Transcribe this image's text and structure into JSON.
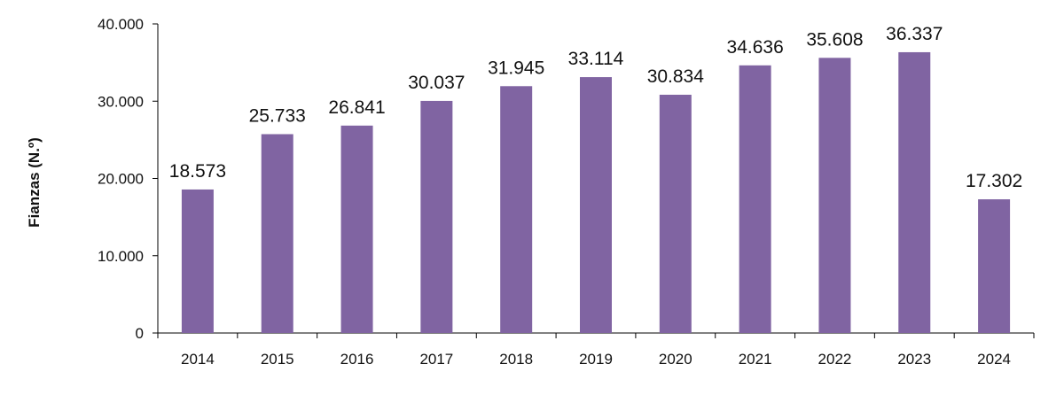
{
  "chart_data": {
    "type": "bar",
    "title": "",
    "xlabel": "",
    "ylabel": "Fianzas (N.º)",
    "ylim": [
      0,
      40000
    ],
    "yticks": [
      0,
      10000,
      20000,
      30000,
      40000
    ],
    "ytick_labels": [
      "0",
      "10.000",
      "20.000",
      "30.000",
      "40.000"
    ],
    "categories": [
      "2014",
      "2015",
      "2016",
      "2017",
      "2018",
      "2019",
      "2020",
      "2021",
      "2022",
      "2023",
      "2024"
    ],
    "values": [
      18573,
      25733,
      26841,
      30037,
      31945,
      33114,
      30834,
      34636,
      35608,
      36337,
      17302
    ],
    "value_labels": [
      "18.573",
      "25.733",
      "26.841",
      "30.037",
      "31.945",
      "33.114",
      "30.834",
      "34.636",
      "35.608",
      "36.337",
      "17.302"
    ],
    "bar_color": "#8064a2",
    "axis_color": "#000000",
    "grid": false,
    "legend": "none"
  }
}
